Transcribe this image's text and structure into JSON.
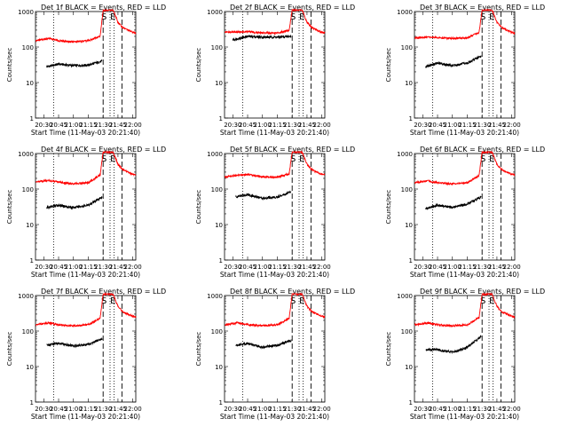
{
  "figure": {
    "ylabel": "Counts/sec",
    "xlabel": "Start Time (11-May-03 20:21:40)",
    "series_names": [
      "Events",
      "LLD"
    ],
    "colors": {
      "events": "#000000",
      "lld": "#ff0000",
      "axes": "#000000",
      "background": "#ffffff"
    },
    "yticks": [
      "1",
      "10",
      "100",
      "1000"
    ],
    "xticks": [
      "20:30",
      "20:45",
      "21:00",
      "21:15",
      "21:30",
      "21:45",
      "22:00"
    ],
    "marker_labels": {
      "S": "S",
      "E": "E"
    }
  },
  "chart_data": [
    {
      "type": "line",
      "title": "Det 1f BLACK = Events, RED = LLD",
      "xlim": [
        "20:21:40",
        "22:03"
      ],
      "ylim": [
        1,
        1000
      ],
      "yscale": "log",
      "markers": {
        "S": "21:30",
        "E": "21:39",
        "dotted": [
          "20:40",
          "21:37",
          "21:41"
        ],
        "dashed": [
          "21:30",
          "21:49"
        ]
      },
      "series": [
        {
          "name": "Events",
          "color": "#000000",
          "start": "20:33",
          "end": "21:29",
          "points": [
            [
              "20:33",
              28
            ],
            [
              "20:45",
              33
            ],
            [
              "21:00",
              30
            ],
            [
              "21:15",
              31
            ],
            [
              "21:29",
              40
            ]
          ]
        },
        {
          "name": "LLD",
          "color": "#ff0000",
          "start": "20:22",
          "end": "22:03",
          "points": [
            [
              "20:22",
              150
            ],
            [
              "20:35",
              175
            ],
            [
              "20:45",
              150
            ],
            [
              "21:00",
              140
            ],
            [
              "21:15",
              150
            ],
            [
              "21:27",
              200
            ],
            [
              "21:30",
              1100
            ],
            [
              "21:40",
              1100
            ],
            [
              "21:45",
              500
            ],
            [
              "21:50",
              350
            ],
            [
              "22:00",
              260
            ],
            [
              "22:03",
              250
            ]
          ]
        }
      ]
    },
    {
      "type": "line",
      "title": "Det 2f BLACK = Events, RED = LLD",
      "xlim": [
        "20:21:40",
        "22:03"
      ],
      "ylim": [
        1,
        1000
      ],
      "yscale": "log",
      "markers": {
        "S": "21:30",
        "E": "21:39",
        "dotted": [
          "20:40",
          "21:37",
          "21:41"
        ],
        "dashed": [
          "21:30",
          "21:49"
        ]
      },
      "series": [
        {
          "name": "Events",
          "color": "#000000",
          "start": "20:30",
          "end": "21:29",
          "points": [
            [
              "20:30",
              160
            ],
            [
              "20:45",
              200
            ],
            [
              "21:00",
              190
            ],
            [
              "21:15",
              190
            ],
            [
              "21:29",
              200
            ]
          ]
        },
        {
          "name": "LLD",
          "color": "#ff0000",
          "start": "20:22",
          "end": "22:03",
          "points": [
            [
              "20:22",
              260
            ],
            [
              "20:45",
              270
            ],
            [
              "21:00",
              250
            ],
            [
              "21:15",
              250
            ],
            [
              "21:27",
              300
            ],
            [
              "21:30",
              1100
            ],
            [
              "21:40",
              1100
            ],
            [
              "21:45",
              500
            ],
            [
              "21:50",
              350
            ],
            [
              "22:00",
              260
            ],
            [
              "22:03",
              250
            ]
          ]
        }
      ]
    },
    {
      "type": "line",
      "title": "Det 3f BLACK = Events, RED = LLD",
      "xlim": [
        "20:21:40",
        "22:03"
      ],
      "ylim": [
        1,
        1000
      ],
      "yscale": "log",
      "markers": {
        "S": "21:30",
        "E": "21:39",
        "dotted": [
          "20:40",
          "21:37",
          "21:41"
        ],
        "dashed": [
          "21:30",
          "21:49"
        ]
      },
      "series": [
        {
          "name": "Events",
          "color": "#000000",
          "start": "20:33",
          "end": "21:29",
          "points": [
            [
              "20:33",
              28
            ],
            [
              "20:45",
              35
            ],
            [
              "21:00",
              30
            ],
            [
              "21:15",
              35
            ],
            [
              "21:29",
              55
            ]
          ]
        },
        {
          "name": "LLD",
          "color": "#ff0000",
          "start": "20:22",
          "end": "22:03",
          "points": [
            [
              "20:22",
              180
            ],
            [
              "20:35",
              190
            ],
            [
              "20:45",
              185
            ],
            [
              "21:00",
              175
            ],
            [
              "21:15",
              180
            ],
            [
              "21:27",
              260
            ],
            [
              "21:30",
              1100
            ],
            [
              "21:40",
              1100
            ],
            [
              "21:45",
              500
            ],
            [
              "21:50",
              350
            ],
            [
              "22:00",
              260
            ],
            [
              "22:03",
              250
            ]
          ]
        }
      ]
    },
    {
      "type": "line",
      "title": "Det 4f BLACK = Events, RED = LLD",
      "xlim": [
        "20:21:40",
        "22:03"
      ],
      "ylim": [
        1,
        1000
      ],
      "yscale": "log",
      "markers": {
        "S": "21:30",
        "E": "21:39",
        "dotted": [
          "20:40",
          "21:37",
          "21:41"
        ],
        "dashed": [
          "21:30",
          "21:49"
        ]
      },
      "series": [
        {
          "name": "Events",
          "color": "#000000",
          "start": "20:33",
          "end": "21:29",
          "points": [
            [
              "20:33",
              30
            ],
            [
              "20:45",
              35
            ],
            [
              "21:00",
              30
            ],
            [
              "21:15",
              35
            ],
            [
              "21:29",
              60
            ]
          ]
        },
        {
          "name": "LLD",
          "color": "#ff0000",
          "start": "20:22",
          "end": "22:03",
          "points": [
            [
              "20:22",
              160
            ],
            [
              "20:35",
              175
            ],
            [
              "20:45",
              155
            ],
            [
              "21:00",
              140
            ],
            [
              "21:15",
              150
            ],
            [
              "21:27",
              250
            ],
            [
              "21:30",
              1100
            ],
            [
              "21:40",
              1100
            ],
            [
              "21:45",
              500
            ],
            [
              "21:50",
              350
            ],
            [
              "22:00",
              260
            ],
            [
              "22:03",
              250
            ]
          ]
        }
      ]
    },
    {
      "type": "line",
      "title": "Det 5f BLACK = Events, RED = LLD",
      "xlim": [
        "20:21:40",
        "22:03"
      ],
      "ylim": [
        1,
        1000
      ],
      "yscale": "log",
      "markers": {
        "S": "21:30",
        "E": "21:39",
        "dotted": [
          "20:40",
          "21:37",
          "21:41"
        ],
        "dashed": [
          "21:30",
          "21:49"
        ]
      },
      "series": [
        {
          "name": "Events",
          "color": "#000000",
          "start": "20:33",
          "end": "21:29",
          "points": [
            [
              "20:33",
              60
            ],
            [
              "20:45",
              70
            ],
            [
              "21:00",
              55
            ],
            [
              "21:15",
              60
            ],
            [
              "21:29",
              85
            ]
          ]
        },
        {
          "name": "LLD",
          "color": "#ff0000",
          "start": "20:22",
          "end": "22:03",
          "points": [
            [
              "20:22",
              220
            ],
            [
              "20:45",
              260
            ],
            [
              "21:00",
              220
            ],
            [
              "21:15",
              215
            ],
            [
              "21:27",
              270
            ],
            [
              "21:30",
              1100
            ],
            [
              "21:40",
              1100
            ],
            [
              "21:45",
              500
            ],
            [
              "21:50",
              350
            ],
            [
              "22:00",
              260
            ],
            [
              "22:03",
              250
            ]
          ]
        }
      ]
    },
    {
      "type": "line",
      "title": "Det 6f BLACK = Events, RED = LLD",
      "xlim": [
        "20:21:40",
        "22:03"
      ],
      "ylim": [
        1,
        1000
      ],
      "yscale": "log",
      "markers": {
        "S": "21:30",
        "E": "21:39",
        "dotted": [
          "20:40",
          "21:37",
          "21:41"
        ],
        "dashed": [
          "21:30",
          "21:49"
        ]
      },
      "series": [
        {
          "name": "Events",
          "color": "#000000",
          "start": "20:33",
          "end": "21:29",
          "points": [
            [
              "20:33",
              28
            ],
            [
              "20:45",
              35
            ],
            [
              "21:00",
              30
            ],
            [
              "21:15",
              38
            ],
            [
              "21:29",
              60
            ]
          ]
        },
        {
          "name": "LLD",
          "color": "#ff0000",
          "start": "20:22",
          "end": "22:03",
          "points": [
            [
              "20:22",
              150
            ],
            [
              "20:35",
              170
            ],
            [
              "20:45",
              150
            ],
            [
              "21:00",
              140
            ],
            [
              "21:15",
              150
            ],
            [
              "21:27",
              240
            ],
            [
              "21:30",
              1100
            ],
            [
              "21:40",
              1100
            ],
            [
              "21:45",
              500
            ],
            [
              "21:50",
              350
            ],
            [
              "22:00",
              260
            ],
            [
              "22:03",
              250
            ]
          ]
        }
      ]
    },
    {
      "type": "line",
      "title": "Det 7f BLACK = Events, RED = LLD",
      "xlim": [
        "20:21:40",
        "22:03"
      ],
      "ylim": [
        1,
        1000
      ],
      "yscale": "log",
      "markers": {
        "S": "21:30",
        "E": "21:39",
        "dotted": [
          "20:40",
          "21:37",
          "21:41"
        ],
        "dashed": [
          "21:30",
          "21:49"
        ]
      },
      "series": [
        {
          "name": "Events",
          "color": "#000000",
          "start": "20:33",
          "end": "21:29",
          "points": [
            [
              "20:33",
              40
            ],
            [
              "20:45",
              45
            ],
            [
              "21:00",
              38
            ],
            [
              "21:15",
              42
            ],
            [
              "21:29",
              60
            ]
          ]
        },
        {
          "name": "LLD",
          "color": "#ff0000",
          "start": "20:22",
          "end": "22:03",
          "points": [
            [
              "20:22",
              150
            ],
            [
              "20:35",
              170
            ],
            [
              "20:45",
              150
            ],
            [
              "21:00",
              140
            ],
            [
              "21:15",
              150
            ],
            [
              "21:27",
              230
            ],
            [
              "21:30",
              1100
            ],
            [
              "21:40",
              1100
            ],
            [
              "21:45",
              500
            ],
            [
              "21:50",
              350
            ],
            [
              "22:00",
              260
            ],
            [
              "22:03",
              250
            ]
          ]
        }
      ]
    },
    {
      "type": "line",
      "title": "Det 8f BLACK = Events, RED = LLD",
      "xlim": [
        "20:21:40",
        "22:03"
      ],
      "ylim": [
        1,
        1000
      ],
      "yscale": "log",
      "markers": {
        "S": "21:30",
        "E": "21:39",
        "dotted": [
          "20:40",
          "21:37",
          "21:41"
        ],
        "dashed": [
          "21:30",
          "21:49"
        ]
      },
      "series": [
        {
          "name": "Events",
          "color": "#000000",
          "start": "20:33",
          "end": "21:29",
          "points": [
            [
              "20:33",
              40
            ],
            [
              "20:45",
              45
            ],
            [
              "21:00",
              35
            ],
            [
              "21:15",
              40
            ],
            [
              "21:29",
              55
            ]
          ]
        },
        {
          "name": "LLD",
          "color": "#ff0000",
          "start": "20:22",
          "end": "22:03",
          "points": [
            [
              "20:22",
              150
            ],
            [
              "20:35",
              170
            ],
            [
              "20:45",
              150
            ],
            [
              "21:00",
              140
            ],
            [
              "21:15",
              150
            ],
            [
              "21:27",
              230
            ],
            [
              "21:30",
              1100
            ],
            [
              "21:40",
              1100
            ],
            [
              "21:45",
              500
            ],
            [
              "21:50",
              350
            ],
            [
              "22:00",
              260
            ],
            [
              "22:03",
              250
            ]
          ]
        }
      ]
    },
    {
      "type": "line",
      "title": "Det 9f BLACK = Events, RED = LLD",
      "xlim": [
        "20:21:40",
        "22:03"
      ],
      "ylim": [
        1,
        1000
      ],
      "yscale": "log",
      "markers": {
        "S": "21:30",
        "E": "21:39",
        "dotted": [
          "20:40",
          "21:37",
          "21:41"
        ],
        "dashed": [
          "21:30",
          "21:49"
        ]
      },
      "series": [
        {
          "name": "Events",
          "color": "#000000",
          "start": "20:33",
          "end": "21:29",
          "points": [
            [
              "20:33",
              30
            ],
            [
              "20:45",
              30
            ],
            [
              "21:00",
              25
            ],
            [
              "21:15",
              35
            ],
            [
              "21:29",
              70
            ]
          ]
        },
        {
          "name": "LLD",
          "color": "#ff0000",
          "start": "20:22",
          "end": "22:03",
          "points": [
            [
              "20:22",
              150
            ],
            [
              "20:35",
              170
            ],
            [
              "20:45",
              150
            ],
            [
              "21:00",
              140
            ],
            [
              "21:15",
              150
            ],
            [
              "21:27",
              240
            ],
            [
              "21:30",
              1100
            ],
            [
              "21:40",
              1100
            ],
            [
              "21:45",
              500
            ],
            [
              "21:50",
              350
            ],
            [
              "22:00",
              260
            ],
            [
              "22:03",
              250
            ]
          ]
        }
      ]
    }
  ]
}
